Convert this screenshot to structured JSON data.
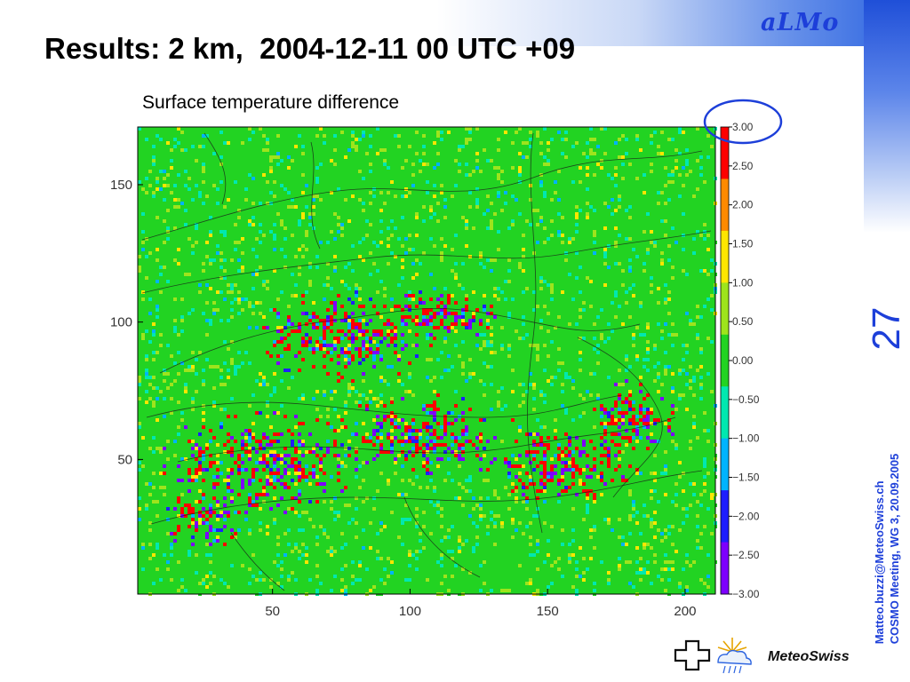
{
  "slide": {
    "brand": "aLMo",
    "title": "Results: 2 km,  2004-12-11 00 UTC +09",
    "slide_number": "27",
    "credit_line1": "Matteo.buzzi@MeteoSwiss.ch",
    "credit_line2": "COSMO Meeting, WG 3, 20.09.2005",
    "logo_text": "MeteoSwiss"
  },
  "chart_data": {
    "type": "heatmap",
    "title": "Surface temperature difference",
    "xlabel": "",
    "ylabel": "",
    "xlim": [
      1,
      211
    ],
    "ylim": [
      1,
      171
    ],
    "x_ticks": [
      50,
      100,
      150,
      200
    ],
    "y_ticks": [
      50,
      100,
      150
    ],
    "color_range": [
      -3.0,
      3.0
    ],
    "colorbar_ticks": [
      "3.00",
      "2.50",
      "2.00",
      "1.50",
      "1.00",
      "0.50",
      "0.00",
      "−0.50",
      "−1.00",
      "−1.50",
      "−2.00",
      "−2.50",
      "−3.00"
    ],
    "colormap": [
      "#7d00ff",
      "#1e1eff",
      "#00b4ff",
      "#00e8b0",
      "#22d322",
      "#9ee41c",
      "#ffe600",
      "#ff8a00",
      "#ff0000"
    ],
    "background_value": 0.0,
    "colorbar_highlight": "3.00",
    "highlight_color": "#1d3fd9",
    "grid": false
  }
}
